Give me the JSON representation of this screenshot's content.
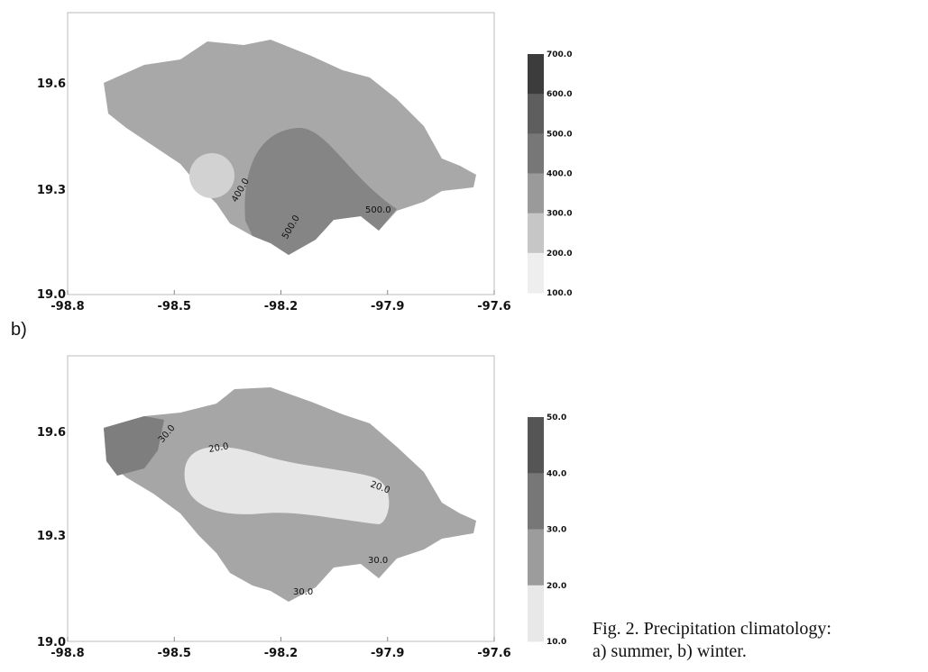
{
  "panels": [
    {
      "x_ticks": [
        "-98.8",
        "-98.5",
        "-98.2",
        "-97.9",
        "-97.6"
      ],
      "y_ticks": [
        "19.0",
        "19.3",
        "19.6"
      ],
      "colorbar": [
        "700.0",
        "600.0",
        "500.0",
        "400.0",
        "300.0",
        "200.0",
        "100.0"
      ],
      "contour_labels": [
        "400.0",
        "500.0",
        "500.0"
      ]
    },
    {
      "label": "b)",
      "x_ticks": [
        "-98.8",
        "-98.5",
        "-98.2",
        "-97.9",
        "-97.6"
      ],
      "y_ticks": [
        "19.0",
        "19.3",
        "19.6"
      ],
      "colorbar": [
        "50.0",
        "40.0",
        "30.0",
        "20.0",
        "10.0"
      ],
      "contour_labels": [
        "30.0",
        "20.0",
        "20.0",
        "30.0",
        "30.0"
      ]
    }
  ],
  "caption": [
    "Fig. 2. Precipitation climatology:",
    "a) summer, b) winter."
  ]
}
